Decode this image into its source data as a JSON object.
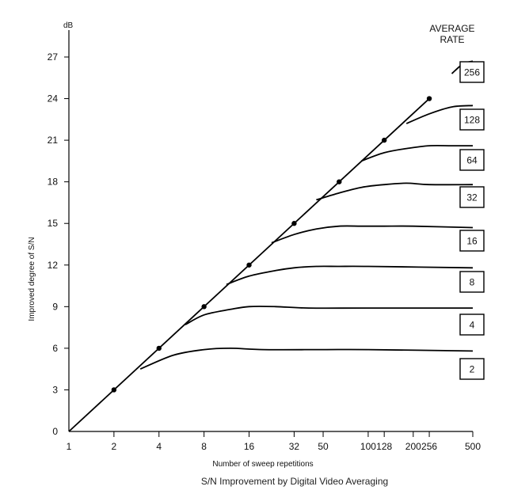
{
  "chart_data": {
    "type": "line",
    "title": "S/N Improvement by Digital Video Averaging",
    "xlabel": "Number of sweep repetitions",
    "ylabel": "Improved degree of S/N",
    "yunit": "dB",
    "x_scale": "log",
    "xlim": [
      1,
      500
    ],
    "ylim": [
      0,
      27
    ],
    "xticks": [
      1,
      2,
      4,
      8,
      16,
      32,
      50,
      100,
      128,
      200,
      256,
      500
    ],
    "yticks": [
      0,
      3,
      6,
      9,
      12,
      15,
      18,
      21,
      24,
      27
    ],
    "legend_title": [
      "AVERAGE",
      "RATE"
    ],
    "legend_placement": "right",
    "grid": false,
    "reference_line": {
      "x": [
        1,
        2,
        4,
        8,
        16,
        32,
        64,
        128,
        256
      ],
      "y": [
        0,
        3,
        6,
        9,
        12,
        15,
        18,
        21,
        24
      ]
    },
    "series": [
      {
        "name": "2",
        "x": [
          3,
          5,
          8,
          12,
          20,
          50,
          100,
          500
        ],
        "y": [
          4.5,
          5.5,
          5.9,
          6.0,
          5.9,
          5.9,
          5.9,
          5.8
        ]
      },
      {
        "name": "4",
        "x": [
          6,
          8,
          12,
          16,
          24,
          40,
          100,
          500
        ],
        "y": [
          7.7,
          8.4,
          8.8,
          9.0,
          9.0,
          8.9,
          8.9,
          8.9
        ]
      },
      {
        "name": "8",
        "x": [
          11.3,
          16,
          24,
          32,
          45,
          64,
          100,
          500
        ],
        "y": [
          10.6,
          11.2,
          11.6,
          11.8,
          11.9,
          11.9,
          11.9,
          11.8
        ]
      },
      {
        "name": "16",
        "x": [
          22.6,
          32,
          45,
          64,
          90,
          128,
          200,
          500
        ],
        "y": [
          13.6,
          14.2,
          14.6,
          14.8,
          14.8,
          14.8,
          14.8,
          14.7
        ]
      },
      {
        "name": "32",
        "x": [
          45,
          64,
          90,
          128,
          180,
          256,
          500
        ],
        "y": [
          16.7,
          17.2,
          17.6,
          17.8,
          17.9,
          17.8,
          17.8
        ]
      },
      {
        "name": "64",
        "x": [
          90,
          128,
          180,
          256,
          362,
          500
        ],
        "y": [
          19.5,
          20.1,
          20.4,
          20.6,
          20.6,
          20.6
        ]
      },
      {
        "name": "128",
        "x": [
          180,
          256,
          362,
          500
        ],
        "y": [
          22.2,
          22.9,
          23.4,
          23.5
        ]
      },
      {
        "name": "256",
        "x": [
          362,
          430,
          500
        ],
        "y": [
          25.8,
          26.5,
          26.7
        ]
      }
    ],
    "dot_points": {
      "x": [
        2,
        4,
        8,
        16,
        32,
        64,
        128,
        256
      ],
      "y": [
        3,
        6,
        9,
        12,
        15,
        18,
        21,
        24
      ]
    }
  }
}
